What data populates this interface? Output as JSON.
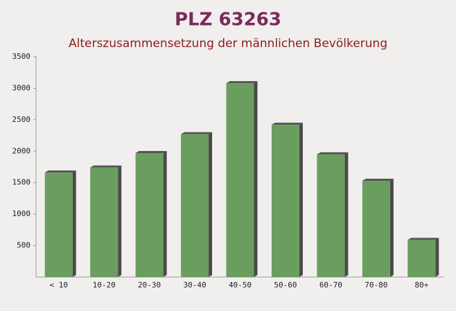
{
  "chart_data": {
    "type": "bar",
    "title": "PLZ 63263",
    "subtitle": "Alterszusammensetzung der männlichen Bevölkerung",
    "categories": [
      "< 10",
      "10-20",
      "20-30",
      "30-40",
      "40-50",
      "50-60",
      "60-70",
      "70-80",
      "80+"
    ],
    "values": [
      1660,
      1740,
      1970,
      2270,
      3080,
      2420,
      1950,
      1530,
      590
    ],
    "color": "#6a9e5e",
    "ylim": [
      0,
      3500
    ],
    "yticks": [
      500,
      1000,
      1500,
      2000,
      2500,
      3000,
      3500
    ]
  }
}
